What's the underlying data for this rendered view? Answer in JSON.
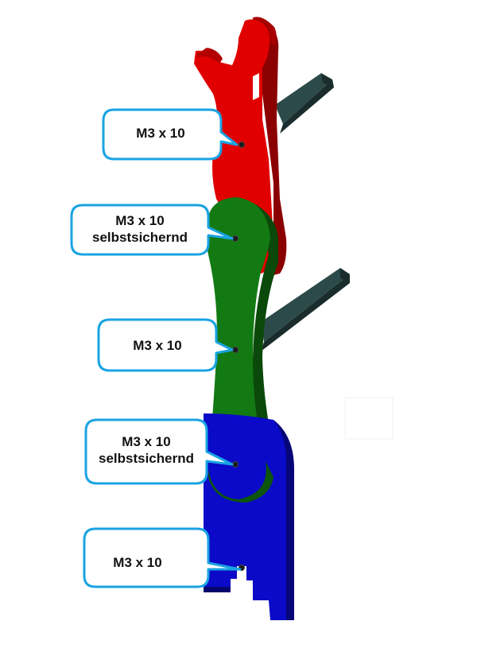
{
  "colors": {
    "upper_link": "#e00000",
    "middle_link": "#137a13",
    "base": "#0a0ac8",
    "shaft": "#2c4a4a",
    "callout_border": "#1aa3e3"
  },
  "callouts": [
    {
      "id": "c1",
      "lines": [
        "M3 x 10"
      ]
    },
    {
      "id": "c2",
      "lines": [
        "M3 x 10",
        "selbstsichernd"
      ]
    },
    {
      "id": "c3",
      "lines": [
        "M3 x 10"
      ]
    },
    {
      "id": "c4",
      "lines": [
        "M3 x 10",
        "selbstsichernd"
      ]
    },
    {
      "id": "c5",
      "lines": [
        "M3 x 10"
      ]
    }
  ]
}
